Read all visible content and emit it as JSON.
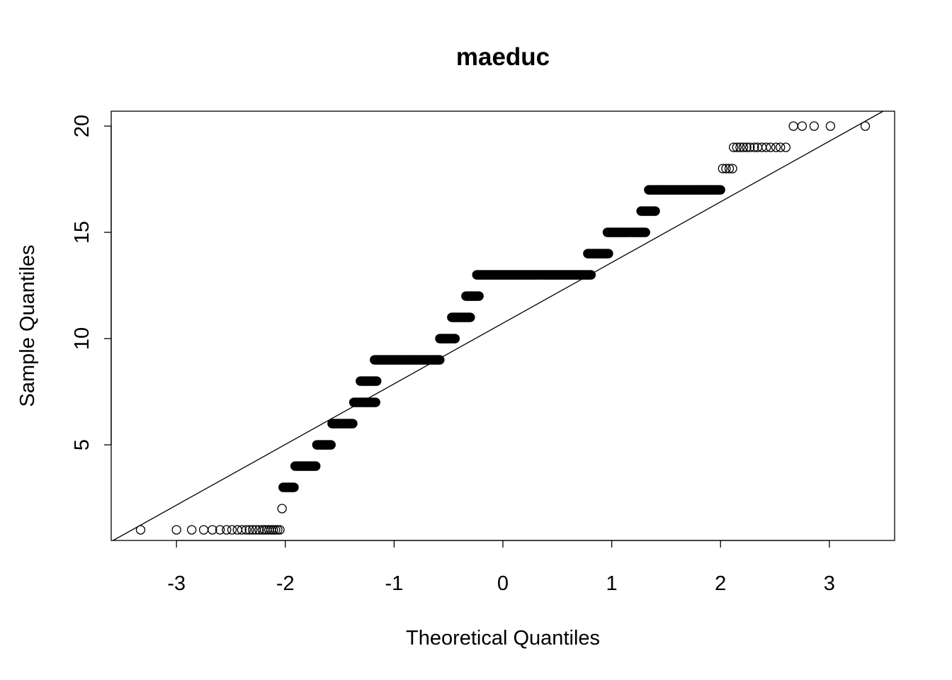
{
  "chart_data": {
    "type": "scatter",
    "title": "maeduc",
    "xlabel": "Theoretical Quantiles",
    "ylabel": "Sample Quantiles",
    "xlim": [
      -3.6,
      3.6
    ],
    "ylim": [
      0.5,
      20.7
    ],
    "x_ticks": [
      -3,
      -2,
      -1,
      0,
      1,
      2,
      3
    ],
    "y_ticks": [
      5,
      10,
      15,
      20
    ],
    "grid": false,
    "legend": "none",
    "reference_line": {
      "x1": -3.6,
      "y1": 0.45,
      "x2": 3.6,
      "y2": 21.0
    },
    "point_groups": [
      {
        "y": 1,
        "x": [
          -3.33,
          -3.0,
          -2.86,
          -2.75,
          -2.67,
          -2.6,
          -2.54,
          -2.49,
          -2.44,
          -2.4,
          -2.36,
          -2.33,
          -2.3,
          -2.27,
          -2.24,
          -2.21,
          -2.19,
          -2.17,
          -2.15,
          -2.13,
          -2.11,
          -2.09,
          -2.07,
          -2.05
        ]
      },
      {
        "y": 2,
        "x": [
          -2.03
        ]
      },
      {
        "y": 3,
        "x_range": [
          -2.02,
          -1.92
        ]
      },
      {
        "y": 4,
        "x_range": [
          -1.91,
          -1.72
        ]
      },
      {
        "y": 5,
        "x_range": [
          -1.71,
          -1.58
        ]
      },
      {
        "y": 6,
        "x_range": [
          -1.57,
          -1.38
        ]
      },
      {
        "y": 7,
        "x_range": [
          -1.37,
          -1.17
        ]
      },
      {
        "y": 8,
        "x_range": [
          -1.31,
          -1.16
        ]
      },
      {
        "y": 9,
        "x_range": [
          -1.18,
          -0.58
        ]
      },
      {
        "y": 10,
        "x_range": [
          -0.58,
          -0.44
        ]
      },
      {
        "y": 11,
        "x_range": [
          -0.47,
          -0.3
        ]
      },
      {
        "y": 12,
        "x_range": [
          -0.34,
          -0.22
        ]
      },
      {
        "y": 13,
        "x_range": [
          -0.24,
          0.81
        ]
      },
      {
        "y": 14,
        "x_range": [
          0.78,
          0.97
        ]
      },
      {
        "y": 15,
        "x_range": [
          0.96,
          1.31
        ]
      },
      {
        "y": 16,
        "x_range": [
          1.27,
          1.4
        ]
      },
      {
        "y": 17,
        "x_range": [
          1.34,
          2.0
        ]
      },
      {
        "y": 18,
        "x": [
          2.02,
          2.05,
          2.08,
          2.11
        ]
      },
      {
        "y": 19,
        "x": [
          2.12,
          2.15,
          2.18,
          2.21,
          2.24,
          2.27,
          2.31,
          2.34,
          2.38,
          2.42,
          2.46,
          2.51,
          2.55,
          2.6
        ]
      },
      {
        "y": 20,
        "x": [
          2.67,
          2.75,
          2.86,
          3.01,
          3.33
        ]
      }
    ]
  }
}
